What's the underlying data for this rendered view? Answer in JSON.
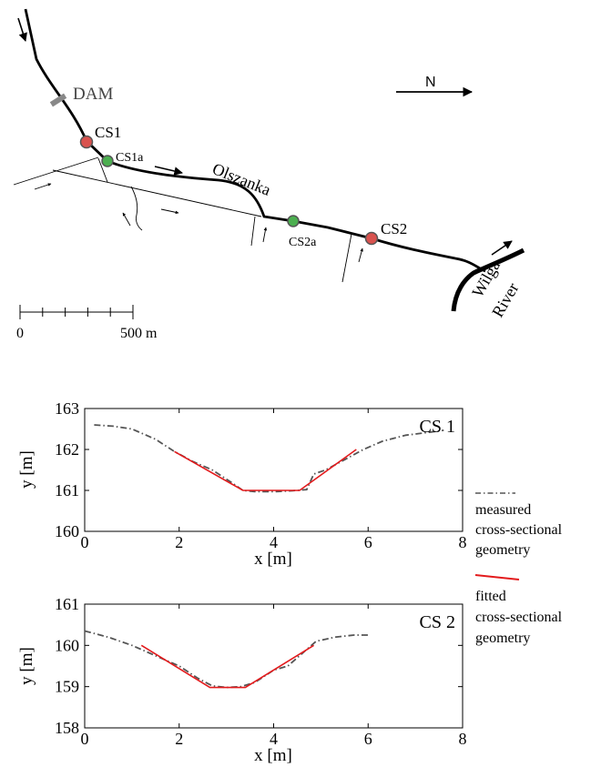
{
  "map": {
    "labels": {
      "dam": "DAM",
      "cs1": "CS1",
      "cs1a": "CS1a",
      "river_name": "Olszanka",
      "cs2a": "CS2a",
      "cs2": "CS2",
      "north": "N",
      "wilga1": "Wilga",
      "wilga2": "River"
    },
    "scale_bar": {
      "start_label": "0",
      "end_label": "500 m"
    },
    "colors": {
      "measured_point": "#d9534f",
      "model_point": "#4caf50",
      "dam": "#888888"
    }
  },
  "chart_data": [
    {
      "type": "line",
      "title": "CS 1",
      "xlabel": "x [m]",
      "ylabel": "y [m]",
      "xlim": [
        0,
        8
      ],
      "ylim": [
        160,
        163
      ],
      "xticks": [
        0,
        2,
        4,
        6,
        8
      ],
      "yticks": [
        160,
        161,
        162,
        163
      ],
      "series": [
        {
          "name": "measured cross-sectional geometry",
          "style": "dashdot",
          "color": "#555555",
          "x": [
            0.2,
            0.6,
            1.0,
            1.5,
            1.9,
            2.3,
            2.7,
            3.1,
            3.35,
            3.6,
            4.0,
            4.4,
            4.7,
            4.85,
            5.1,
            5.5,
            5.9,
            6.3,
            6.8,
            7.3,
            7.6
          ],
          "y": [
            162.6,
            162.57,
            162.5,
            162.25,
            161.95,
            161.7,
            161.5,
            161.2,
            161.0,
            160.97,
            160.97,
            160.99,
            161.02,
            161.4,
            161.5,
            161.75,
            162.0,
            162.2,
            162.35,
            162.42,
            162.47
          ]
        },
        {
          "name": "fitted cross-sectional geometry",
          "style": "solid",
          "color": "#e31a1c",
          "x": [
            1.9,
            3.35,
            4.55,
            5.75
          ],
          "y": [
            161.95,
            161.0,
            161.0,
            162.0
          ]
        }
      ]
    },
    {
      "type": "line",
      "title": "CS 2",
      "xlabel": "x [m]",
      "ylabel": "y [m]",
      "xlim": [
        0,
        8
      ],
      "ylim": [
        158,
        161
      ],
      "xticks": [
        0,
        2,
        4,
        6,
        8
      ],
      "yticks": [
        158,
        159,
        160,
        161
      ],
      "series": [
        {
          "name": "measured cross-sectional geometry",
          "style": "dashdot",
          "color": "#555555",
          "x": [
            0.0,
            0.5,
            1.0,
            1.5,
            2.0,
            2.4,
            2.7,
            3.0,
            3.3,
            3.6,
            4.0,
            4.3,
            4.6,
            4.9,
            5.3,
            5.7,
            6.05
          ],
          "y": [
            160.35,
            160.2,
            160.0,
            159.75,
            159.5,
            159.2,
            159.02,
            158.98,
            159.0,
            159.1,
            159.4,
            159.5,
            159.8,
            160.1,
            160.2,
            160.25,
            160.25
          ]
        },
        {
          "name": "fitted cross-sectional geometry",
          "style": "solid",
          "color": "#e31a1c",
          "x": [
            1.2,
            2.65,
            3.4,
            4.85
          ],
          "y": [
            160.0,
            158.98,
            158.98,
            160.0
          ]
        }
      ]
    }
  ],
  "legend": {
    "measured": [
      "measured",
      "cross-sectional",
      "geometry"
    ],
    "fitted": [
      "fitted",
      "cross-sectional",
      "geometry"
    ]
  }
}
